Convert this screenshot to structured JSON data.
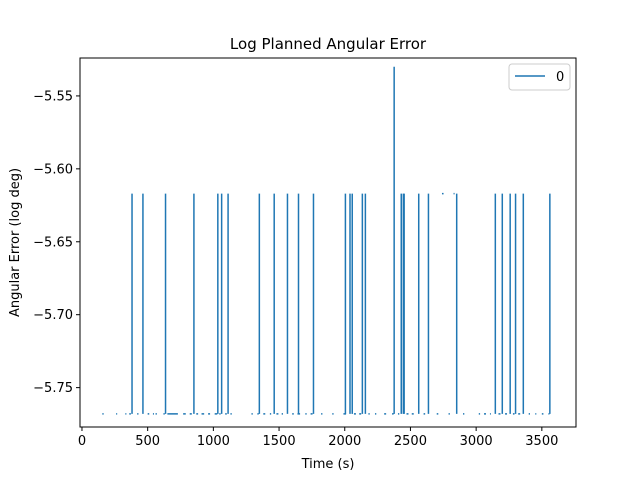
{
  "chart_data": {
    "type": "line",
    "title": "Log Planned Angular Error",
    "xlabel": "Time (s)",
    "ylabel": "Angular Error (log deg)",
    "xlim": [
      -15,
      3760
    ],
    "ylim": [
      -5.777,
      -5.524
    ],
    "xticks": [
      0,
      500,
      1000,
      1500,
      2000,
      2500,
      3000,
      3500
    ],
    "xtick_labels": [
      "0",
      "500",
      "1000",
      "1500",
      "2000",
      "2500",
      "3000",
      "3500"
    ],
    "yticks": [
      -5.55,
      -5.6,
      -5.65,
      -5.7,
      -5.75
    ],
    "ytick_labels": [
      "−5.55",
      "−5.60",
      "−5.65",
      "−5.70",
      "−5.75"
    ],
    "grid": false,
    "legend_position": "top-right",
    "series": [
      {
        "name": "0",
        "color": "#1f77b4",
        "baseline": -5.768,
        "spike_level": -5.617,
        "peak_level": -5.53,
        "spike_times": [
          381,
          464,
          636,
          852,
          1034,
          1063,
          1112,
          1350,
          1463,
          1564,
          1648,
          1762,
          2005,
          2040,
          2057,
          2134,
          2157,
          2430,
          2446,
          2452,
          2563,
          2637,
          2852,
          3146,
          3199,
          3259,
          3300,
          3359,
          3561
        ],
        "peak_times": [
          2376
        ],
        "dash_segments": [
          [
            155,
            165
          ],
          [
            260,
            268
          ],
          [
            330,
            338
          ],
          [
            360,
            372
          ],
          [
            420,
            430
          ],
          [
            500,
            512
          ],
          [
            540,
            548
          ],
          [
            560,
            570
          ],
          [
            620,
            630
          ],
          [
            650,
            730
          ],
          [
            770,
            790
          ],
          [
            820,
            836
          ],
          [
            870,
            884
          ],
          [
            910,
            930
          ],
          [
            960,
            975
          ],
          [
            1010,
            1030
          ],
          [
            1045,
            1055
          ],
          [
            1090,
            1102
          ],
          [
            1130,
            1140
          ],
          [
            1290,
            1300
          ],
          [
            1335,
            1345
          ],
          [
            1380,
            1395
          ],
          [
            1430,
            1440
          ],
          [
            1480,
            1495
          ],
          [
            1520,
            1530
          ],
          [
            1600,
            1612
          ],
          [
            1640,
            1660
          ],
          [
            1700,
            1710
          ],
          [
            1740,
            1755
          ],
          [
            1820,
            1830
          ],
          [
            1905,
            1915
          ],
          [
            1990,
            2010
          ],
          [
            2070,
            2085
          ],
          [
            2110,
            2125
          ],
          [
            2180,
            2190
          ],
          [
            2230,
            2240
          ],
          [
            2300,
            2315
          ],
          [
            2360,
            2372
          ],
          [
            2405,
            2415
          ],
          [
            2470,
            2485
          ],
          [
            2510,
            2525
          ],
          [
            2600,
            2612
          ],
          [
            2700,
            2712
          ],
          [
            2790,
            2800
          ],
          [
            2900,
            2910
          ],
          [
            3020,
            3030
          ],
          [
            3060,
            3075
          ],
          [
            3105,
            3112
          ],
          [
            3170,
            3185
          ],
          [
            3220,
            3235
          ],
          [
            3280,
            3292
          ],
          [
            3320,
            3335
          ],
          [
            3400,
            3410
          ],
          [
            3450,
            3458
          ],
          [
            3500,
            3512
          ],
          [
            3550,
            3558
          ]
        ],
        "spike_dashes": [
          [
            2740,
            2752
          ],
          [
            2828,
            2836
          ]
        ]
      }
    ]
  }
}
